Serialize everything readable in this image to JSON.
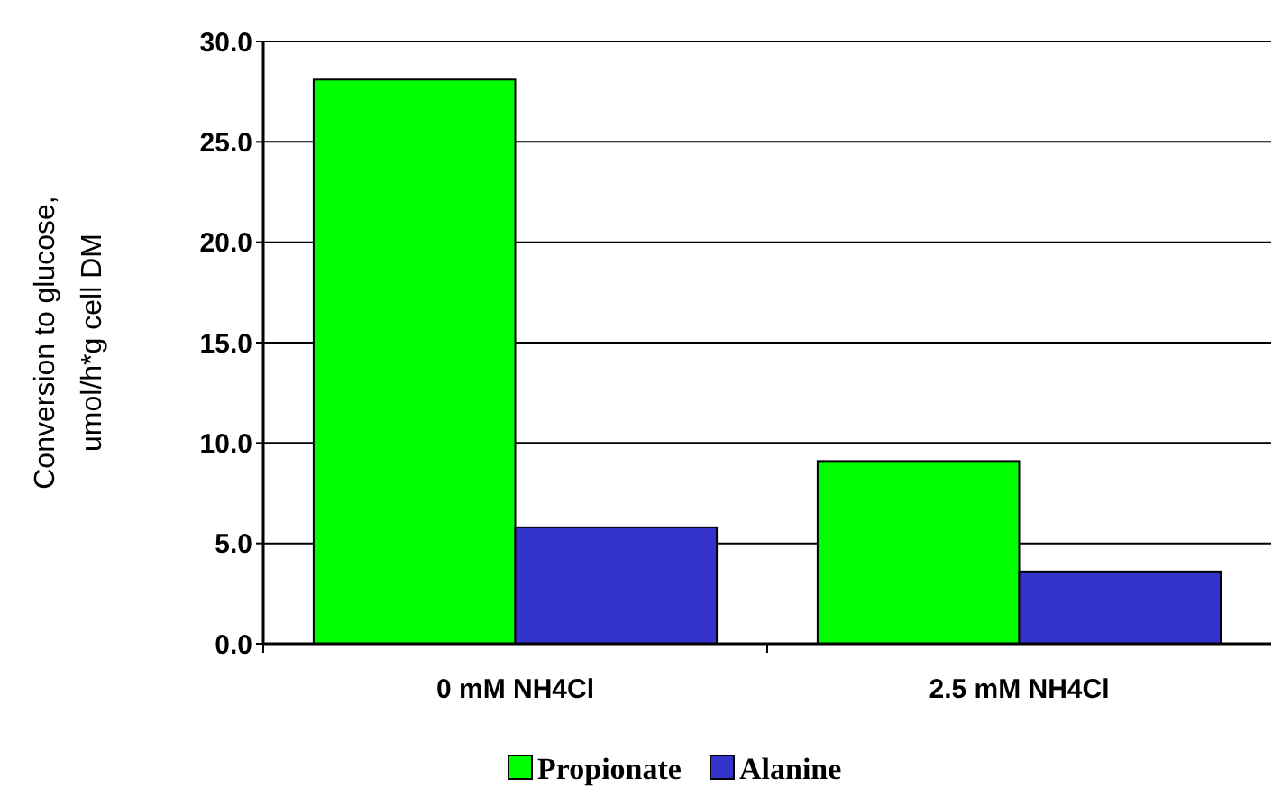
{
  "chart_data": {
    "type": "bar",
    "ylabel": "Conversion to glucose,\numol/h*g cell DM",
    "categories": [
      "0 mM NH4Cl",
      "2.5 mM NH4Cl"
    ],
    "series": [
      {
        "name": "Propionate",
        "color": "#00ff00",
        "values": [
          28.1,
          9.1
        ]
      },
      {
        "name": "Alanine",
        "color": "#3333cc",
        "values": [
          5.8,
          3.6
        ]
      }
    ],
    "ylim": [
      0,
      30
    ],
    "yticks": [
      {
        "value": 0,
        "label": "0.0"
      },
      {
        "value": 5,
        "label": "5.0"
      },
      {
        "value": 10,
        "label": "10.0"
      },
      {
        "value": 15,
        "label": "15.0"
      },
      {
        "value": 20,
        "label": "20.0"
      },
      {
        "value": 25,
        "label": "25.0"
      },
      {
        "value": 30,
        "label": "30.0"
      }
    ],
    "grid": "y",
    "legend": "bottom"
  }
}
